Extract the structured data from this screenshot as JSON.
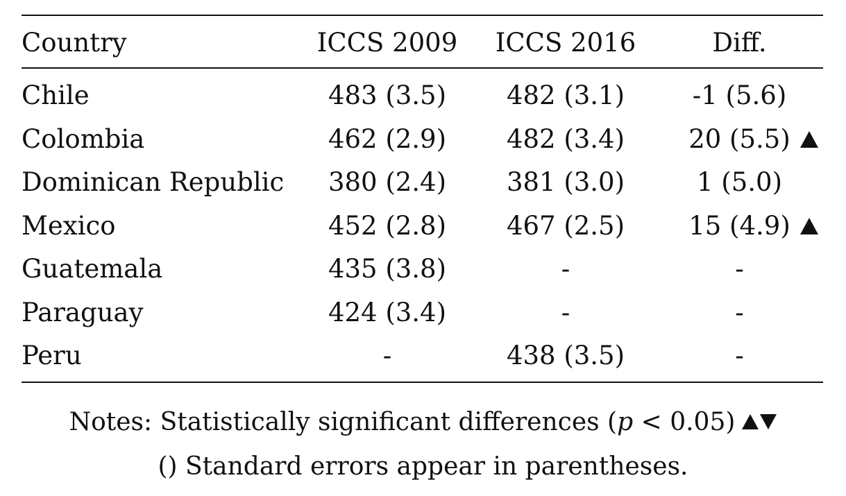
{
  "table": {
    "headers": {
      "country": "Country",
      "iccs2009": "ICCS 2009",
      "iccs2016": "ICCS 2016",
      "diff": "Diff."
    },
    "rows": [
      {
        "country": "Chile",
        "iccs2009": "483 (3.5)",
        "iccs2016": "482 (3.1)",
        "diff": "-1 (5.6)",
        "significance": ""
      },
      {
        "country": "Colombia",
        "iccs2009": "462 (2.9)",
        "iccs2016": "482 (3.4)",
        "diff": "20 (5.5)",
        "significance": "up"
      },
      {
        "country": "Dominican Republic",
        "iccs2009": "380 (2.4)",
        "iccs2016": "381 (3.0)",
        "diff": "1 (5.0)",
        "significance": ""
      },
      {
        "country": "Mexico",
        "iccs2009": "452 (2.8)",
        "iccs2016": "467 (2.5)",
        "diff": "15 (4.9)",
        "significance": "up"
      },
      {
        "country": "Guatemala",
        "iccs2009": "435 (3.8)",
        "iccs2016": "-",
        "diff": "-",
        "significance": ""
      },
      {
        "country": "Paraguay",
        "iccs2009": "424 (3.4)",
        "iccs2016": "-",
        "diff": "-",
        "significance": ""
      },
      {
        "country": "Peru",
        "iccs2009": "-",
        "iccs2016": "438 (3.5)",
        "diff": "-",
        "significance": ""
      }
    ]
  },
  "notes": {
    "line1_prefix": "Notes: Statistically significant differences (",
    "line1_var": "p",
    "line1_suffix": " < 0.05)",
    "line2": "() Standard errors appear in parentheses."
  }
}
